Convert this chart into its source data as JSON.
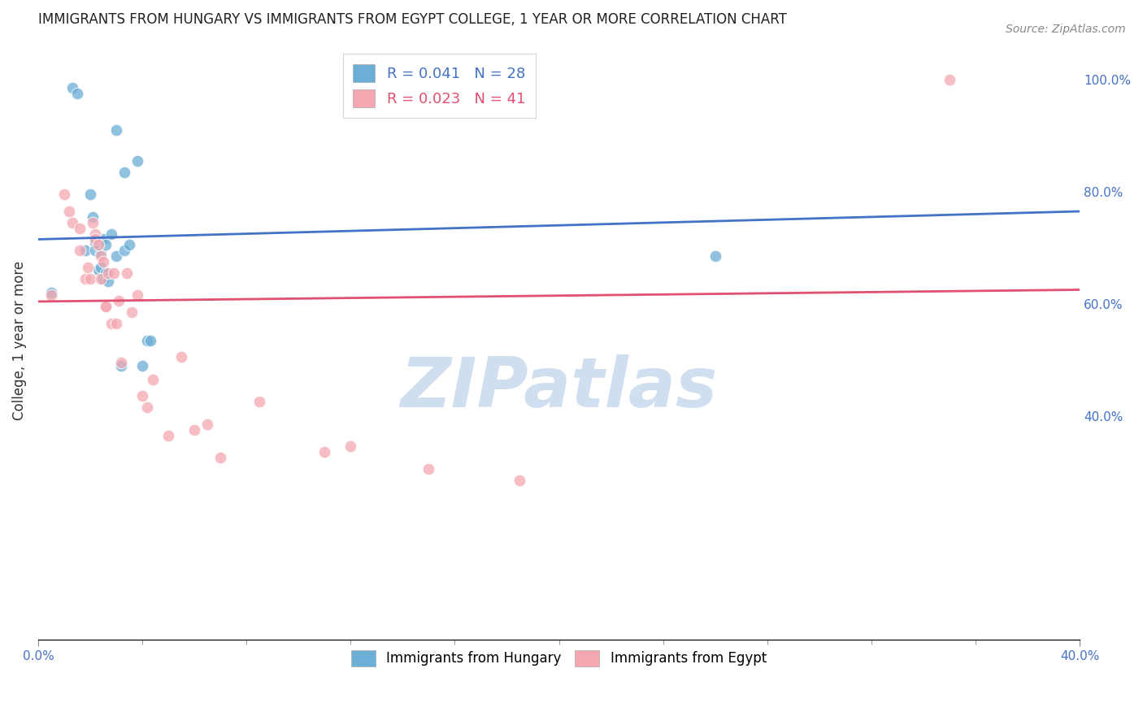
{
  "title": "IMMIGRANTS FROM HUNGARY VS IMMIGRANTS FROM EGYPT COLLEGE, 1 YEAR OR MORE CORRELATION CHART",
  "source": "Source: ZipAtlas.com",
  "ylabel": "College, 1 year or more",
  "xlim": [
    0.0,
    0.4
  ],
  "ylim": [
    0.0,
    1.07
  ],
  "right_yticks": [
    1.0,
    0.8,
    0.6,
    0.4
  ],
  "right_yticklabels": [
    "100.0%",
    "80.0%",
    "60.0%",
    "40.0%"
  ],
  "legend_hungary": "R = 0.041   N = 28",
  "legend_egypt": "R = 0.023   N = 41",
  "color_hungary": "#6baed6",
  "color_egypt": "#f4a7b0",
  "color_hungary_line": "#4472c4",
  "color_egypt_line": "#e05070",
  "watermark": "ZIPatlas",
  "watermark_color": "#d0dff0",
  "hungary_x": [
    0.005,
    0.013,
    0.015,
    0.018,
    0.02,
    0.021,
    0.022,
    0.022,
    0.023,
    0.024,
    0.024,
    0.025,
    0.025,
    0.026,
    0.026,
    0.027,
    0.028,
    0.03,
    0.032,
    0.033,
    0.033,
    0.035,
    0.038,
    0.04,
    0.042,
    0.043,
    0.26,
    0.03
  ],
  "hungary_y": [
    0.62,
    0.985,
    0.975,
    0.695,
    0.795,
    0.755,
    0.71,
    0.695,
    0.66,
    0.69,
    0.665,
    0.645,
    0.715,
    0.705,
    0.655,
    0.64,
    0.725,
    0.685,
    0.49,
    0.695,
    0.835,
    0.705,
    0.855,
    0.49,
    0.535,
    0.535,
    0.685,
    0.91
  ],
  "egypt_x": [
    0.005,
    0.01,
    0.012,
    0.013,
    0.016,
    0.016,
    0.018,
    0.019,
    0.02,
    0.021,
    0.022,
    0.022,
    0.023,
    0.024,
    0.024,
    0.025,
    0.026,
    0.026,
    0.027,
    0.028,
    0.029,
    0.03,
    0.031,
    0.032,
    0.034,
    0.036,
    0.038,
    0.04,
    0.042,
    0.044,
    0.05,
    0.055,
    0.06,
    0.065,
    0.07,
    0.085,
    0.11,
    0.12,
    0.15,
    0.185,
    0.35
  ],
  "egypt_y": [
    0.615,
    0.795,
    0.765,
    0.745,
    0.735,
    0.695,
    0.645,
    0.665,
    0.645,
    0.745,
    0.725,
    0.715,
    0.705,
    0.685,
    0.645,
    0.675,
    0.595,
    0.595,
    0.655,
    0.565,
    0.655,
    0.565,
    0.605,
    0.495,
    0.655,
    0.585,
    0.615,
    0.435,
    0.415,
    0.465,
    0.365,
    0.505,
    0.375,
    0.385,
    0.325,
    0.425,
    0.335,
    0.345,
    0.305,
    0.285,
    1.0
  ],
  "hungary_line_x": [
    0.0,
    0.4
  ],
  "hungary_line_y": [
    0.715,
    0.765
  ],
  "egypt_line_x": [
    0.0,
    0.4
  ],
  "egypt_line_y": [
    0.604,
    0.625
  ],
  "title_fontsize": 12,
  "source_fontsize": 10,
  "legend_fontsize": 13,
  "marker_size": 110,
  "background_color": "#ffffff",
  "grid_color": "#cccccc",
  "title_color": "#222222",
  "axis_label_color": "#333333",
  "right_tick_color": "#4472c4",
  "bottom_tick_color": "#4472c4"
}
